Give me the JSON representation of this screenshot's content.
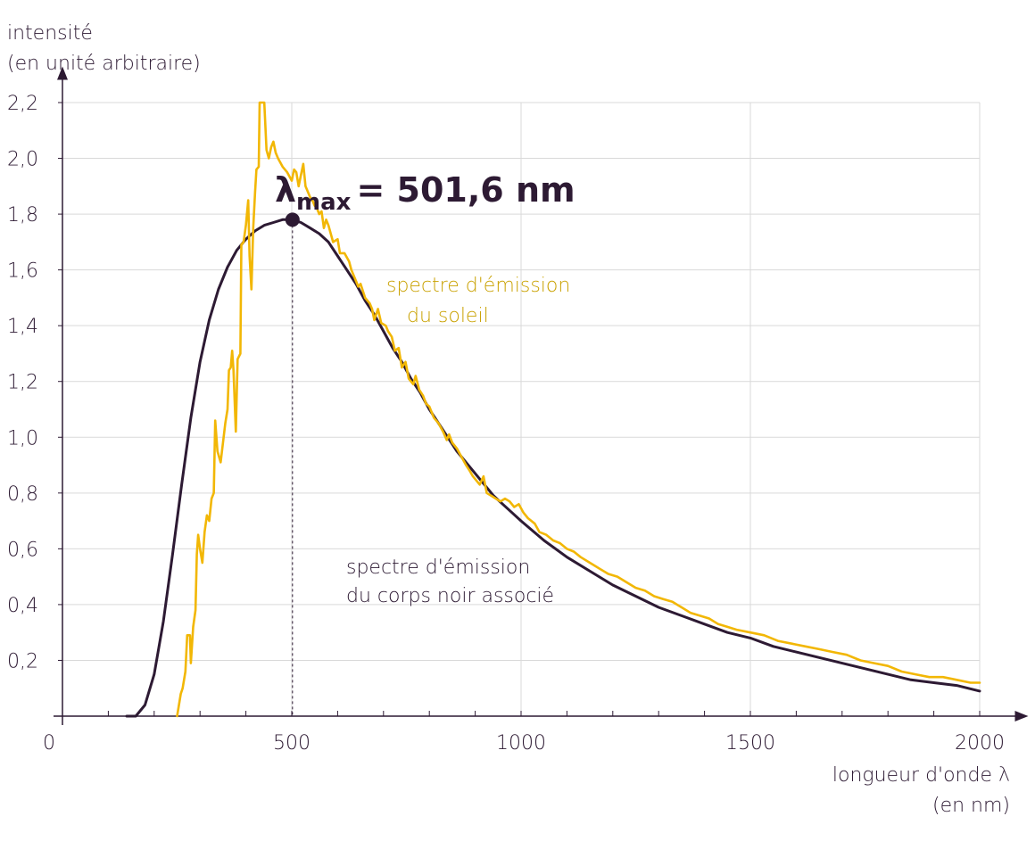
{
  "chart_data": {
    "type": "line",
    "ylabel_line1": "intensité",
    "ylabel_line2": "(en unité arbitraire)",
    "xlabel_line1": "longueur d'onde λ",
    "xlabel_line2": "(en nm)",
    "xlim": [
      0,
      2000
    ],
    "ylim": [
      0,
      2.2
    ],
    "x_ticks": [
      {
        "value": 0,
        "label": "0"
      },
      {
        "value": 500,
        "label": "500"
      },
      {
        "value": 1000,
        "label": "1000"
      },
      {
        "value": 1500,
        "label": "1500"
      },
      {
        "value": 2000,
        "label": "2000"
      }
    ],
    "y_ticks": [
      {
        "value": 0.2,
        "label": "0,2"
      },
      {
        "value": 0.4,
        "label": "0,4"
      },
      {
        "value": 0.6,
        "label": "0,6"
      },
      {
        "value": 0.8,
        "label": "0,8"
      },
      {
        "value": 1.0,
        "label": "1,0"
      },
      {
        "value": 1.2,
        "label": "1,2"
      },
      {
        "value": 1.4,
        "label": "1,4"
      },
      {
        "value": 1.6,
        "label": "1,6"
      },
      {
        "value": 1.8,
        "label": "1,8"
      },
      {
        "value": 2.0,
        "label": "2,0"
      },
      {
        "value": 2.2,
        "label": "2,2"
      }
    ],
    "grid": true,
    "annotation": {
      "lambda_symbol": "λ",
      "subscript": "max",
      "value_text": "= 501,6 nm",
      "peak_x": 501.6,
      "peak_y": 1.78
    },
    "series": [
      {
        "name_line1": "spectre d'émission",
        "name_line2": "du soleil",
        "color": "#f2b705",
        "label_color": "#c9a100",
        "points": [
          [
            250,
            0.0
          ],
          [
            258,
            0.08
          ],
          [
            262,
            0.1
          ],
          [
            268,
            0.16
          ],
          [
            272,
            0.29
          ],
          [
            278,
            0.29
          ],
          [
            280,
            0.19
          ],
          [
            285,
            0.32
          ],
          [
            290,
            0.38
          ],
          [
            293,
            0.58
          ],
          [
            296,
            0.65
          ],
          [
            300,
            0.6
          ],
          [
            305,
            0.55
          ],
          [
            310,
            0.66
          ],
          [
            315,
            0.72
          ],
          [
            320,
            0.7
          ],
          [
            325,
            0.78
          ],
          [
            330,
            0.8
          ],
          [
            333,
            1.06
          ],
          [
            338,
            0.95
          ],
          [
            345,
            0.91
          ],
          [
            350,
            0.98
          ],
          [
            355,
            1.05
          ],
          [
            360,
            1.1
          ],
          [
            363,
            1.24
          ],
          [
            367,
            1.25
          ],
          [
            370,
            1.31
          ],
          [
            373,
            1.24
          ],
          [
            378,
            1.02
          ],
          [
            382,
            1.28
          ],
          [
            388,
            1.3
          ],
          [
            390,
            1.69
          ],
          [
            395,
            1.7
          ],
          [
            400,
            1.76
          ],
          [
            405,
            1.85
          ],
          [
            408,
            1.65
          ],
          [
            412,
            1.53
          ],
          [
            416,
            1.75
          ],
          [
            420,
            1.88
          ],
          [
            423,
            1.96
          ],
          [
            428,
            1.97
          ],
          [
            430,
            2.2
          ],
          [
            440,
            2.2
          ],
          [
            445,
            2.03
          ],
          [
            450,
            2.0
          ],
          [
            455,
            2.04
          ],
          [
            460,
            2.06
          ],
          [
            465,
            2.02
          ],
          [
            470,
            2.0
          ],
          [
            480,
            1.97
          ],
          [
            490,
            1.95
          ],
          [
            500,
            1.92
          ],
          [
            505,
            1.96
          ],
          [
            510,
            1.95
          ],
          [
            515,
            1.9
          ],
          [
            520,
            1.94
          ],
          [
            525,
            1.98
          ],
          [
            530,
            1.9
          ],
          [
            540,
            1.86
          ],
          [
            545,
            1.85
          ],
          [
            550,
            1.83
          ],
          [
            555,
            1.82
          ],
          [
            560,
            1.8
          ],
          [
            565,
            1.81
          ],
          [
            570,
            1.75
          ],
          [
            575,
            1.78
          ],
          [
            580,
            1.76
          ],
          [
            590,
            1.7
          ],
          [
            600,
            1.71
          ],
          [
            605,
            1.66
          ],
          [
            615,
            1.66
          ],
          [
            625,
            1.63
          ],
          [
            630,
            1.6
          ],
          [
            640,
            1.56
          ],
          [
            645,
            1.54
          ],
          [
            650,
            1.55
          ],
          [
            660,
            1.5
          ],
          [
            670,
            1.48
          ],
          [
            675,
            1.46
          ],
          [
            680,
            1.42
          ],
          [
            688,
            1.46
          ],
          [
            695,
            1.41
          ],
          [
            705,
            1.4
          ],
          [
            710,
            1.38
          ],
          [
            718,
            1.36
          ],
          [
            725,
            1.31
          ],
          [
            733,
            1.32
          ],
          [
            740,
            1.25
          ],
          [
            748,
            1.27
          ],
          [
            755,
            1.21
          ],
          [
            765,
            1.19
          ],
          [
            770,
            1.22
          ],
          [
            778,
            1.17
          ],
          [
            786,
            1.15
          ],
          [
            793,
            1.12
          ],
          [
            800,
            1.11
          ],
          [
            810,
            1.07
          ],
          [
            820,
            1.05
          ],
          [
            830,
            1.02
          ],
          [
            838,
            0.99
          ],
          [
            843,
            1.01
          ],
          [
            850,
            0.98
          ],
          [
            860,
            0.96
          ],
          [
            870,
            0.93
          ],
          [
            880,
            0.9
          ],
          [
            888,
            0.88
          ],
          [
            895,
            0.86
          ],
          [
            900,
            0.85
          ],
          [
            910,
            0.83
          ],
          [
            918,
            0.86
          ],
          [
            925,
            0.8
          ],
          [
            935,
            0.79
          ],
          [
            945,
            0.78
          ],
          [
            955,
            0.77
          ],
          [
            965,
            0.78
          ],
          [
            975,
            0.77
          ],
          [
            985,
            0.75
          ],
          [
            995,
            0.76
          ],
          [
            1005,
            0.73
          ],
          [
            1015,
            0.71
          ],
          [
            1030,
            0.69
          ],
          [
            1040,
            0.66
          ],
          [
            1055,
            0.65
          ],
          [
            1070,
            0.63
          ],
          [
            1085,
            0.62
          ],
          [
            1100,
            0.6
          ],
          [
            1115,
            0.59
          ],
          [
            1130,
            0.57
          ],
          [
            1150,
            0.55
          ],
          [
            1170,
            0.53
          ],
          [
            1190,
            0.51
          ],
          [
            1210,
            0.5
          ],
          [
            1230,
            0.48
          ],
          [
            1250,
            0.46
          ],
          [
            1270,
            0.45
          ],
          [
            1290,
            0.43
          ],
          [
            1310,
            0.42
          ],
          [
            1330,
            0.41
          ],
          [
            1350,
            0.39
          ],
          [
            1370,
            0.37
          ],
          [
            1390,
            0.36
          ],
          [
            1410,
            0.35
          ],
          [
            1430,
            0.33
          ],
          [
            1450,
            0.32
          ],
          [
            1470,
            0.31
          ],
          [
            1500,
            0.3
          ],
          [
            1530,
            0.29
          ],
          [
            1560,
            0.27
          ],
          [
            1590,
            0.26
          ],
          [
            1620,
            0.25
          ],
          [
            1650,
            0.24
          ],
          [
            1680,
            0.23
          ],
          [
            1710,
            0.22
          ],
          [
            1740,
            0.2
          ],
          [
            1770,
            0.19
          ],
          [
            1800,
            0.18
          ],
          [
            1830,
            0.16
          ],
          [
            1860,
            0.15
          ],
          [
            1890,
            0.14
          ],
          [
            1920,
            0.14
          ],
          [
            1950,
            0.13
          ],
          [
            1980,
            0.12
          ],
          [
            2000,
            0.12
          ]
        ]
      },
      {
        "name_line1": "spectre d'émission",
        "name_line2": "du corps noir associé",
        "color": "#2d1a33",
        "label_color": "#2d1a33",
        "points": [
          [
            140,
            0.0
          ],
          [
            160,
            0.0
          ],
          [
            180,
            0.04
          ],
          [
            200,
            0.15
          ],
          [
            220,
            0.34
          ],
          [
            240,
            0.58
          ],
          [
            260,
            0.83
          ],
          [
            280,
            1.07
          ],
          [
            300,
            1.27
          ],
          [
            320,
            1.42
          ],
          [
            340,
            1.53
          ],
          [
            360,
            1.61
          ],
          [
            380,
            1.67
          ],
          [
            400,
            1.71
          ],
          [
            420,
            1.74
          ],
          [
            440,
            1.76
          ],
          [
            460,
            1.77
          ],
          [
            480,
            1.78
          ],
          [
            501.6,
            1.78
          ],
          [
            520,
            1.77
          ],
          [
            540,
            1.75
          ],
          [
            560,
            1.73
          ],
          [
            580,
            1.7
          ],
          [
            600,
            1.65
          ],
          [
            620,
            1.6
          ],
          [
            640,
            1.55
          ],
          [
            660,
            1.49
          ],
          [
            680,
            1.44
          ],
          [
            700,
            1.38
          ],
          [
            720,
            1.32
          ],
          [
            740,
            1.27
          ],
          [
            760,
            1.21
          ],
          [
            780,
            1.16
          ],
          [
            800,
            1.1
          ],
          [
            820,
            1.05
          ],
          [
            840,
            1.0
          ],
          [
            860,
            0.95
          ],
          [
            880,
            0.91
          ],
          [
            900,
            0.87
          ],
          [
            920,
            0.83
          ],
          [
            940,
            0.79
          ],
          [
            960,
            0.76
          ],
          [
            980,
            0.73
          ],
          [
            1000,
            0.7
          ],
          [
            1050,
            0.63
          ],
          [
            1100,
            0.57
          ],
          [
            1150,
            0.52
          ],
          [
            1200,
            0.47
          ],
          [
            1250,
            0.43
          ],
          [
            1300,
            0.39
          ],
          [
            1350,
            0.36
          ],
          [
            1400,
            0.33
          ],
          [
            1450,
            0.3
          ],
          [
            1500,
            0.28
          ],
          [
            1550,
            0.25
          ],
          [
            1600,
            0.23
          ],
          [
            1650,
            0.21
          ],
          [
            1700,
            0.19
          ],
          [
            1750,
            0.17
          ],
          [
            1800,
            0.15
          ],
          [
            1850,
            0.13
          ],
          [
            1900,
            0.12
          ],
          [
            1950,
            0.11
          ],
          [
            2000,
            0.09
          ]
        ]
      }
    ]
  }
}
